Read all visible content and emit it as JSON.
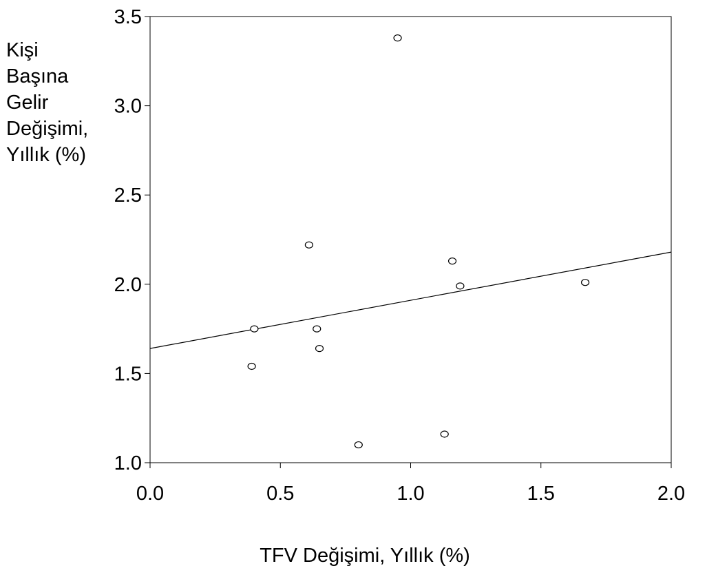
{
  "chart_data": {
    "type": "scatter",
    "title": "",
    "xlabel": "TFV Değişimi, Yıllık (%)",
    "ylabel_lines": [
      "Kişi",
      "Başına",
      "Gelir",
      "Değişimi,",
      "Yıllık (%)"
    ],
    "xlim": [
      0.0,
      2.0
    ],
    "ylim": [
      1.0,
      3.5
    ],
    "x_ticks": [
      "0.0",
      "0.5",
      "1.0",
      "1.5",
      "2.0"
    ],
    "y_ticks": [
      "1.0",
      "1.5",
      "2.0",
      "2.5",
      "3.0",
      "3.5"
    ],
    "grid": false,
    "legend": "none",
    "points": [
      {
        "x": 0.95,
        "y": 3.38
      },
      {
        "x": 0.61,
        "y": 2.22
      },
      {
        "x": 1.16,
        "y": 2.13
      },
      {
        "x": 1.19,
        "y": 1.99
      },
      {
        "x": 1.67,
        "y": 2.01
      },
      {
        "x": 0.4,
        "y": 1.75
      },
      {
        "x": 0.64,
        "y": 1.75
      },
      {
        "x": 0.65,
        "y": 1.64
      },
      {
        "x": 0.39,
        "y": 1.54
      },
      {
        "x": 0.8,
        "y": 1.1
      },
      {
        "x": 1.13,
        "y": 1.16
      }
    ],
    "fit_line": {
      "x": [
        0.0,
        2.0
      ],
      "y": [
        1.64,
        2.18
      ]
    },
    "colors": {
      "marker_stroke": "#000000",
      "marker_fill": "#ffffff",
      "line": "#000000",
      "axis": "#000000"
    }
  }
}
